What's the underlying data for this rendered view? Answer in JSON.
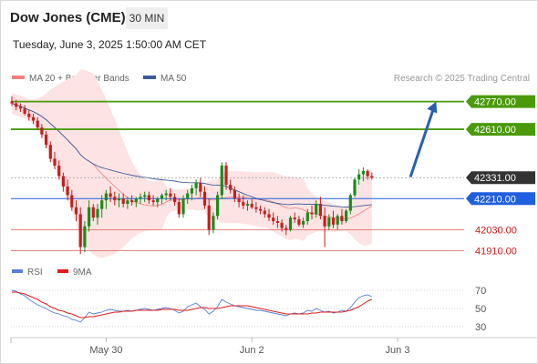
{
  "header": {
    "title": "Dow Jones (CME)",
    "timeframe": "30 MIN",
    "datetime": "Tuesday, June 3, 2025 1:50:00 AM CET"
  },
  "legend": {
    "ma20_label": "MA 20 + Bollinger Bands",
    "ma50_label": "MA 50",
    "research": "Research © 2025 Trading Central"
  },
  "rsi_legend": {
    "rsi_label": "RSI",
    "ma9_label": "9MA"
  },
  "colors": {
    "green_level": "#4a9a0a",
    "blue_level": "#1f5fe0",
    "red_level": "#e05a5a",
    "current": "#333333",
    "ma20": "#f08080",
    "bb_fill": "#fde3e3",
    "ma50": "#3c5a9a",
    "rsi": "#5b7fd6",
    "ma9": "#e01b1b",
    "arrow": "#2a5fb0",
    "candle_up": "#1d8a1d",
    "candle_down": "#c41e1e"
  },
  "chart_data": {
    "type": "candlestick",
    "price_scale": [
      41870,
      42810
    ],
    "x_labels": [
      {
        "label": "May 30",
        "index": 22
      },
      {
        "label": "Jun 2",
        "index": 56
      },
      {
        "label": "Jun 3",
        "index": 90
      }
    ],
    "levels": [
      {
        "label": "42770.00",
        "value": 42770,
        "kind": "resistance",
        "style": "green"
      },
      {
        "label": "42610.00",
        "value": 42610,
        "kind": "resistance",
        "style": "green"
      },
      {
        "label": "42331.00",
        "value": 42331,
        "kind": "current",
        "style": "dark"
      },
      {
        "label": "42210.00",
        "value": 42210,
        "kind": "pivot",
        "style": "blue"
      },
      {
        "label": "42030.00",
        "value": 42030,
        "kind": "support",
        "style": "red"
      },
      {
        "label": "41910.00",
        "value": 41910,
        "kind": "support",
        "style": "red"
      }
    ],
    "arrow": {
      "from_index": 93,
      "from_price": 42335,
      "to_index": 99,
      "to_price": 42770
    },
    "ohlc": [
      [
        42770,
        42800,
        42745,
        42760
      ],
      [
        42760,
        42780,
        42720,
        42740
      ],
      [
        42740,
        42760,
        42710,
        42730
      ],
      [
        42730,
        42750,
        42690,
        42700
      ],
      [
        42700,
        42720,
        42660,
        42680
      ],
      [
        42680,
        42700,
        42640,
        42660
      ],
      [
        42660,
        42680,
        42610,
        42620
      ],
      [
        42620,
        42640,
        42560,
        42580
      ],
      [
        42580,
        42600,
        42500,
        42520
      ],
      [
        42520,
        42540,
        42420,
        42440
      ],
      [
        42440,
        42480,
        42380,
        42400
      ],
      [
        42400,
        42430,
        42320,
        42340
      ],
      [
        42340,
        42360,
        42250,
        42280
      ],
      [
        42280,
        42320,
        42200,
        42230
      ],
      [
        42230,
        42260,
        42140,
        42160
      ],
      [
        42160,
        42200,
        42080,
        42120
      ],
      [
        42120,
        42160,
        41890,
        41930
      ],
      [
        41930,
        42080,
        41900,
        42050
      ],
      [
        42050,
        42200,
        42020,
        42160
      ],
      [
        42160,
        42180,
        42080,
        42100
      ],
      [
        42100,
        42180,
        42060,
        42150
      ],
      [
        42150,
        42230,
        42100,
        42200
      ],
      [
        42200,
        42260,
        42150,
        42240
      ],
      [
        42240,
        42280,
        42190,
        42220
      ],
      [
        42220,
        42250,
        42170,
        42200
      ],
      [
        42200,
        42240,
        42160,
        42210
      ],
      [
        42210,
        42240,
        42160,
        42180
      ],
      [
        42180,
        42220,
        42150,
        42200
      ],
      [
        42200,
        42230,
        42170,
        42190
      ],
      [
        42190,
        42220,
        42160,
        42210
      ],
      [
        42210,
        42240,
        42180,
        42220
      ],
      [
        42220,
        42250,
        42190,
        42230
      ],
      [
        42230,
        42250,
        42180,
        42200
      ],
      [
        42200,
        42230,
        42170,
        42190
      ],
      [
        42190,
        42220,
        42160,
        42210
      ],
      [
        42210,
        42240,
        42180,
        42230
      ],
      [
        42230,
        42260,
        42200,
        42240
      ],
      [
        42240,
        42270,
        42200,
        42220
      ],
      [
        42220,
        42240,
        42170,
        42190
      ],
      [
        42190,
        42210,
        42100,
        42120
      ],
      [
        42120,
        42230,
        42100,
        42210
      ],
      [
        42210,
        42260,
        42180,
        42240
      ],
      [
        42240,
        42290,
        42200,
        42270
      ],
      [
        42270,
        42320,
        42230,
        42300
      ],
      [
        42300,
        42330,
        42220,
        42250
      ],
      [
        42250,
        42280,
        42150,
        42170
      ],
      [
        42170,
        42210,
        42000,
        42030
      ],
      [
        42030,
        42130,
        42010,
        42110
      ],
      [
        42110,
        42250,
        42090,
        42230
      ],
      [
        42230,
        42420,
        42210,
        42400
      ],
      [
        42400,
        42420,
        42260,
        42290
      ],
      [
        42290,
        42320,
        42240,
        42260
      ],
      [
        42260,
        42280,
        42190,
        42210
      ],
      [
        42210,
        42240,
        42160,
        42190
      ],
      [
        42190,
        42230,
        42150,
        42170
      ],
      [
        42170,
        42200,
        42140,
        42180
      ],
      [
        42180,
        42210,
        42150,
        42160
      ],
      [
        42160,
        42190,
        42130,
        42150
      ],
      [
        42150,
        42170,
        42120,
        42140
      ],
      [
        42140,
        42160,
        42100,
        42120
      ],
      [
        42120,
        42150,
        42080,
        42100
      ],
      [
        42100,
        42130,
        42060,
        42080
      ],
      [
        42080,
        42110,
        42040,
        42070
      ],
      [
        42070,
        42090,
        42020,
        42040
      ],
      [
        42040,
        42060,
        42000,
        42030
      ],
      [
        42030,
        42110,
        42020,
        42100
      ],
      [
        42100,
        42130,
        42070,
        42090
      ],
      [
        42090,
        42110,
        42050,
        42060
      ],
      [
        42060,
        42100,
        42040,
        42080
      ],
      [
        42080,
        42150,
        42060,
        42130
      ],
      [
        42130,
        42170,
        42090,
        42120
      ],
      [
        42120,
        42200,
        42100,
        42180
      ],
      [
        42180,
        42220,
        42090,
        42110
      ],
      [
        42110,
        42160,
        41930,
        42050
      ],
      [
        42050,
        42120,
        42030,
        42100
      ],
      [
        42100,
        42140,
        42040,
        42060
      ],
      [
        42060,
        42120,
        42030,
        42110
      ],
      [
        42110,
        42150,
        42060,
        42080
      ],
      [
        42080,
        42150,
        42070,
        42140
      ],
      [
        42140,
        42240,
        42120,
        42230
      ],
      [
        42230,
        42330,
        42220,
        42320
      ],
      [
        42320,
        42380,
        42290,
        42350
      ],
      [
        42350,
        42390,
        42310,
        42370
      ],
      [
        42370,
        42380,
        42320,
        42340
      ],
      [
        42340,
        42360,
        42320,
        42331
      ]
    ],
    "rsi": [
      70,
      69,
      66,
      64,
      60,
      57,
      54,
      52,
      50,
      47,
      45,
      44,
      42,
      41,
      38,
      37,
      35,
      40,
      46,
      44,
      45,
      46,
      48,
      49,
      48,
      47,
      47,
      48,
      47,
      48,
      49,
      50,
      49,
      48,
      49,
      50,
      51,
      50,
      48,
      45,
      47,
      52,
      54,
      56,
      52,
      49,
      44,
      47,
      52,
      60,
      57,
      55,
      53,
      52,
      51,
      50,
      49,
      48,
      48,
      47,
      46,
      45,
      44,
      43,
      42,
      44,
      45,
      44,
      45,
      48,
      47,
      50,
      48,
      46,
      47,
      45,
      46,
      48,
      47,
      51,
      57,
      62,
      64,
      65,
      63
    ],
    "ma9": [
      68,
      68,
      67,
      66,
      64,
      62,
      60,
      57,
      55,
      52,
      50,
      48,
      47,
      45,
      44,
      42,
      40,
      40,
      41,
      41,
      42,
      43,
      44,
      45,
      46,
      46,
      47,
      47,
      47,
      48,
      48,
      48,
      48,
      48,
      48,
      49,
      49,
      49,
      49,
      48,
      48,
      48,
      49,
      50,
      51,
      51,
      50,
      50,
      50,
      51,
      52,
      53,
      53,
      53,
      53,
      53,
      52,
      51,
      50,
      49,
      48,
      47,
      46,
      45,
      44,
      44,
      44,
      44,
      44,
      44,
      45,
      45,
      46,
      46,
      46,
      46,
      46,
      46,
      47,
      48,
      50,
      52,
      55,
      58,
      60
    ],
    "rsi_scale": [
      20,
      75
    ],
    "rsi_ticks": [
      "70",
      "50",
      "30"
    ]
  }
}
